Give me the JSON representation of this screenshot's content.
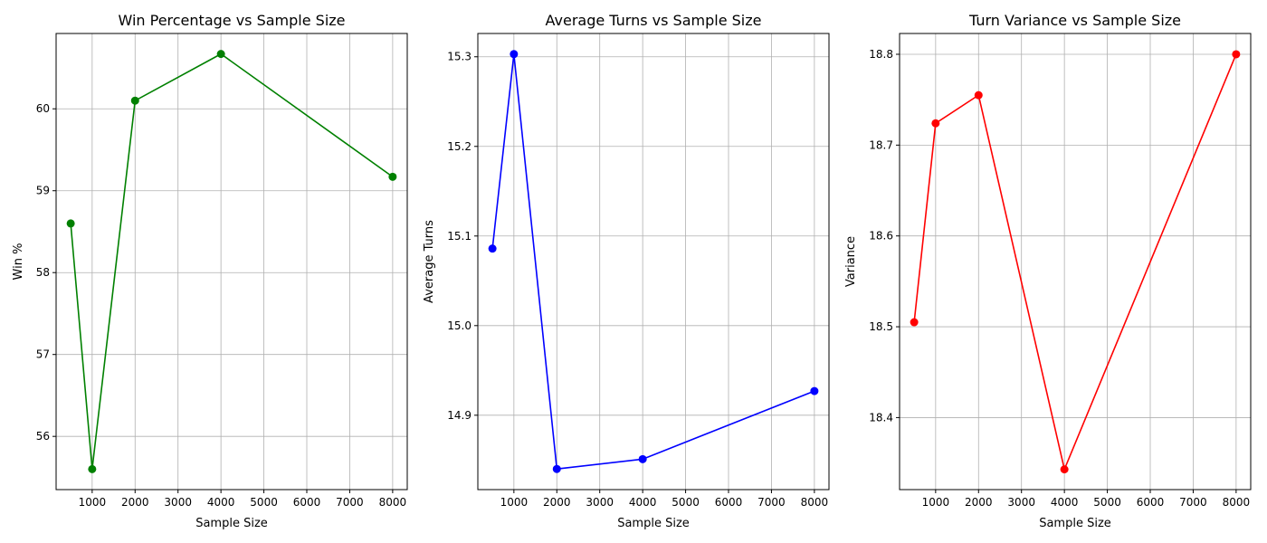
{
  "chart_data": [
    {
      "type": "line",
      "title": "Win Percentage vs Sample Size",
      "xlabel": "Sample Size",
      "ylabel": "Win %",
      "color": "#008000",
      "x": [
        500,
        1000,
        2000,
        4000,
        8000
      ],
      "y": [
        58.6,
        55.6,
        60.1,
        60.67,
        59.17
      ],
      "xlim": [
        160,
        8340
      ],
      "ylim": [
        55.35,
        60.92
      ],
      "xticks": [
        1000,
        2000,
        3000,
        4000,
        5000,
        6000,
        7000,
        8000
      ],
      "xtick_labels": [
        "1000",
        "2000",
        "3000",
        "4000",
        "5000",
        "6000",
        "7000",
        "8000"
      ],
      "yticks": [
        56,
        57,
        58,
        59,
        60
      ],
      "ytick_labels": [
        "56",
        "57",
        "58",
        "59",
        "60"
      ],
      "grid": true,
      "marker": "circle"
    },
    {
      "type": "line",
      "title": "Average Turns vs Sample Size",
      "xlabel": "Sample Size",
      "ylabel": "Average Turns",
      "color": "#0000ff",
      "x": [
        500,
        1000,
        2000,
        4000,
        8000
      ],
      "y": [
        15.086,
        15.303,
        14.84,
        14.851,
        14.927
      ],
      "xlim": [
        160,
        8340
      ],
      "ylim": [
        14.817,
        15.326
      ],
      "xticks": [
        1000,
        2000,
        3000,
        4000,
        5000,
        6000,
        7000,
        8000
      ],
      "xtick_labels": [
        "1000",
        "2000",
        "3000",
        "4000",
        "5000",
        "6000",
        "7000",
        "8000"
      ],
      "yticks": [
        14.9,
        15.0,
        15.1,
        15.2,
        15.3
      ],
      "ytick_labels": [
        "14.9",
        "15.0",
        "15.1",
        "15.2",
        "15.3"
      ],
      "grid": true,
      "marker": "circle"
    },
    {
      "type": "line",
      "title": "Turn Variance vs Sample Size",
      "xlabel": "Sample Size",
      "ylabel": "Variance",
      "color": "#ff0000",
      "x": [
        500,
        1000,
        2000,
        4000,
        8000
      ],
      "y": [
        18.505,
        18.724,
        18.755,
        18.343,
        18.8
      ],
      "xlim": [
        160,
        8340
      ],
      "ylim": [
        18.3207,
        18.8229
      ],
      "xticks": [
        1000,
        2000,
        3000,
        4000,
        5000,
        6000,
        7000,
        8000
      ],
      "xtick_labels": [
        "1000",
        "2000",
        "3000",
        "4000",
        "5000",
        "6000",
        "7000",
        "8000"
      ],
      "yticks": [
        18.4,
        18.5,
        18.6,
        18.7,
        18.8
      ],
      "ytick_labels": [
        "18.4",
        "18.5",
        "18.6",
        "18.7",
        "18.8"
      ],
      "grid": true,
      "marker": "circle"
    }
  ]
}
